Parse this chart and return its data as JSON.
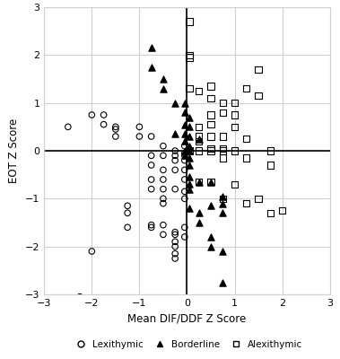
{
  "lexithymic_x": [
    -2.5,
    -2.0,
    -1.5,
    -1.5,
    -1.25,
    -1.25,
    -1.0,
    -1.0,
    -0.75,
    -0.75,
    -0.75,
    -0.75,
    -0.75,
    -0.5,
    -0.5,
    -0.5,
    -0.5,
    -0.5,
    -0.5,
    -0.5,
    -0.25,
    -0.25,
    -0.25,
    -0.25,
    -0.25,
    -0.25,
    -0.25,
    -0.25,
    -0.05,
    -0.05,
    -0.05,
    -0.05,
    -0.05,
    -0.05,
    -0.05,
    -0.05,
    -0.05,
    -0.05,
    -1.75,
    -1.75,
    -1.5,
    -1.25,
    -0.75,
    -0.5,
    -0.25,
    -0.25,
    -0.25,
    -2.25,
    -2.0,
    -0.5,
    -0.75
  ],
  "lexithymic_y": [
    0.5,
    0.75,
    0.5,
    0.3,
    -1.15,
    -1.6,
    0.5,
    0.3,
    -0.1,
    -0.3,
    -0.6,
    -0.8,
    -1.6,
    0.1,
    -0.1,
    -0.4,
    -0.6,
    -0.8,
    -1.55,
    -1.75,
    0.0,
    -0.1,
    -0.2,
    -0.4,
    -0.8,
    -1.75,
    -2.0,
    -2.25,
    0.1,
    -0.05,
    -0.1,
    -0.2,
    -0.4,
    -0.6,
    -0.85,
    -1.0,
    -1.6,
    -1.8,
    0.75,
    0.55,
    0.45,
    -1.3,
    -1.55,
    -1.0,
    -1.7,
    -1.9,
    -2.15,
    -3.05,
    -2.1,
    -1.1,
    0.3
  ],
  "borderline_x": [
    -0.75,
    -0.75,
    -0.5,
    -0.5,
    -0.25,
    -0.25,
    -0.05,
    -0.05,
    -0.05,
    -0.05,
    -0.05,
    -0.05,
    -0.05,
    0.05,
    0.05,
    0.05,
    0.05,
    0.05,
    0.05,
    0.05,
    0.05,
    0.05,
    0.05,
    0.25,
    0.25,
    0.25,
    0.5,
    0.5,
    0.5,
    0.5,
    0.75,
    0.75,
    0.75,
    0.75,
    0.75,
    0.25,
    0.05
  ],
  "borderline_y": [
    1.75,
    2.15,
    1.5,
    1.3,
    1.0,
    0.35,
    1.0,
    0.8,
    0.55,
    0.35,
    0.2,
    0.0,
    -0.1,
    0.7,
    0.5,
    0.3,
    0.1,
    0.0,
    -0.15,
    -0.3,
    -0.7,
    -0.8,
    -1.2,
    -0.65,
    -1.3,
    -1.5,
    -0.65,
    -1.15,
    -1.8,
    -2.0,
    -0.95,
    -1.1,
    -1.3,
    -2.1,
    -2.75,
    0.25,
    -0.55
  ],
  "alexithymic_x": [
    0.05,
    0.05,
    0.05,
    0.05,
    0.05,
    0.25,
    0.25,
    0.25,
    0.25,
    0.25,
    0.5,
    0.5,
    0.5,
    0.5,
    0.5,
    0.5,
    0.5,
    0.75,
    0.75,
    0.75,
    0.75,
    0.75,
    0.75,
    1.0,
    1.0,
    1.0,
    1.0,
    1.25,
    1.25,
    1.25,
    1.5,
    1.5,
    1.5,
    1.75,
    1.75,
    2.0,
    0.25,
    0.5,
    0.75,
    1.0,
    1.25,
    1.75
  ],
  "alexithymic_y": [
    2.7,
    2.0,
    1.95,
    1.3,
    0.0,
    1.25,
    0.5,
    0.3,
    0.2,
    0.0,
    1.35,
    1.1,
    0.75,
    0.55,
    0.3,
    0.05,
    0.0,
    1.0,
    0.8,
    0.3,
    0.05,
    0.0,
    -0.15,
    1.0,
    0.75,
    0.5,
    0.0,
    1.3,
    0.25,
    -0.15,
    1.7,
    1.15,
    -1.0,
    0.0,
    -0.3,
    -1.25,
    -0.65,
    -0.65,
    -1.0,
    -0.7,
    -1.1,
    -1.3
  ],
  "xlabel": "Mean DIF/DDF Z Score",
  "ylabel": "EOT Z Score",
  "xlim": [
    -3,
    3
  ],
  "ylim": [
    -3,
    3
  ],
  "xticks": [
    -3,
    -2,
    -1,
    0,
    1,
    2,
    3
  ],
  "yticks": [
    -3,
    -2,
    -1,
    0,
    1,
    2,
    3
  ],
  "legend_labels": [
    "Lexithymic",
    "Borderline",
    "Alexithymic"
  ],
  "background_color": "#ffffff",
  "grid_color": "#d0d0d0",
  "spine_color": "#d0d0d0"
}
